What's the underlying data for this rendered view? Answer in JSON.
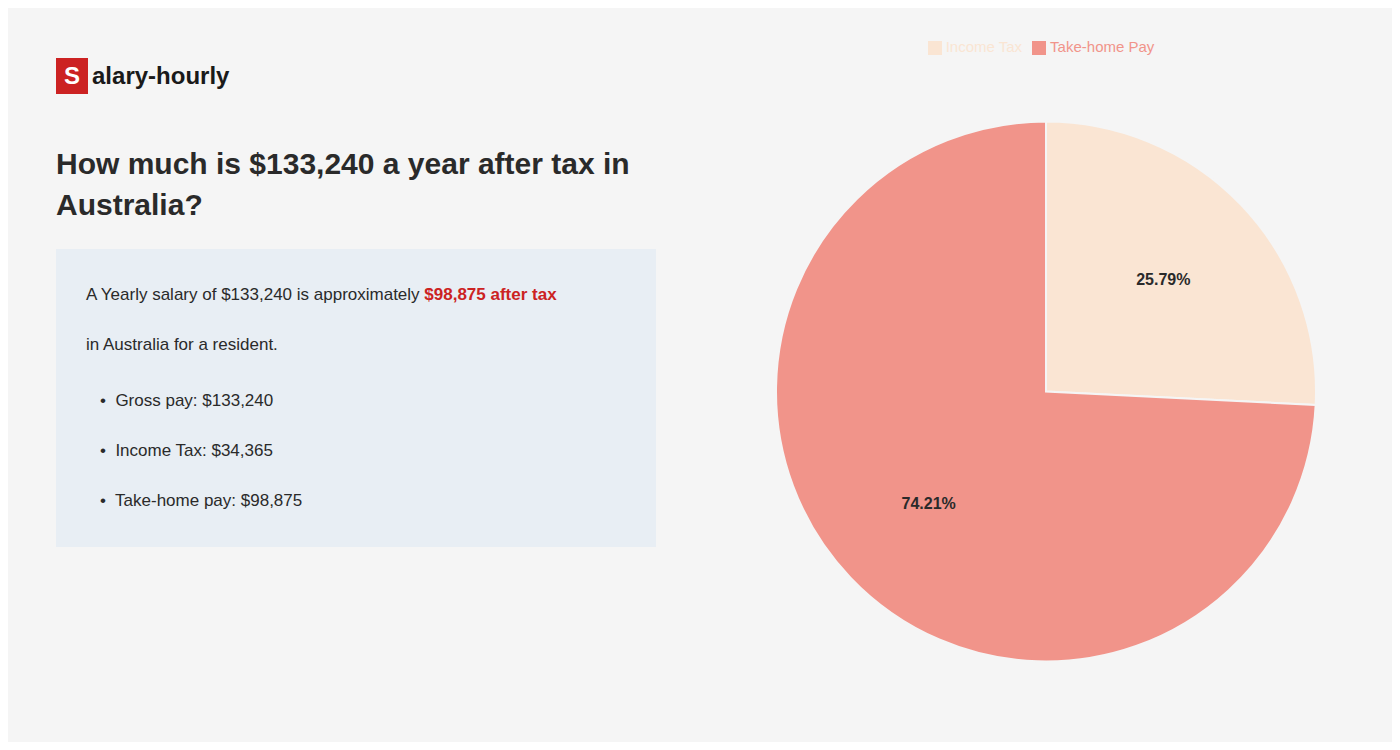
{
  "chart_data": {
    "type": "pie",
    "title": "How much is $133,240 a year after tax in\nAustralia?",
    "annotations": [
      "S",
      "alary-hourly",
      "A Yearly salary of $133,240 is approximately ",
      "$98,875 after tax",
      "in Australia for a resident.",
      "•  Gross pay: $133,240",
      "•  Income Tax: $34,365",
      "•  Take-home pay: $98,875"
    ],
    "categories": [
      "Income Tax",
      "Take-home Pay"
    ],
    "values": [
      25.79,
      74.21
    ],
    "value_labels": [
      "25.79%",
      "74.21%"
    ],
    "colors": [
      "#fae5d3",
      "#f1948a"
    ],
    "data_labels": true,
    "legend": "top"
  }
}
